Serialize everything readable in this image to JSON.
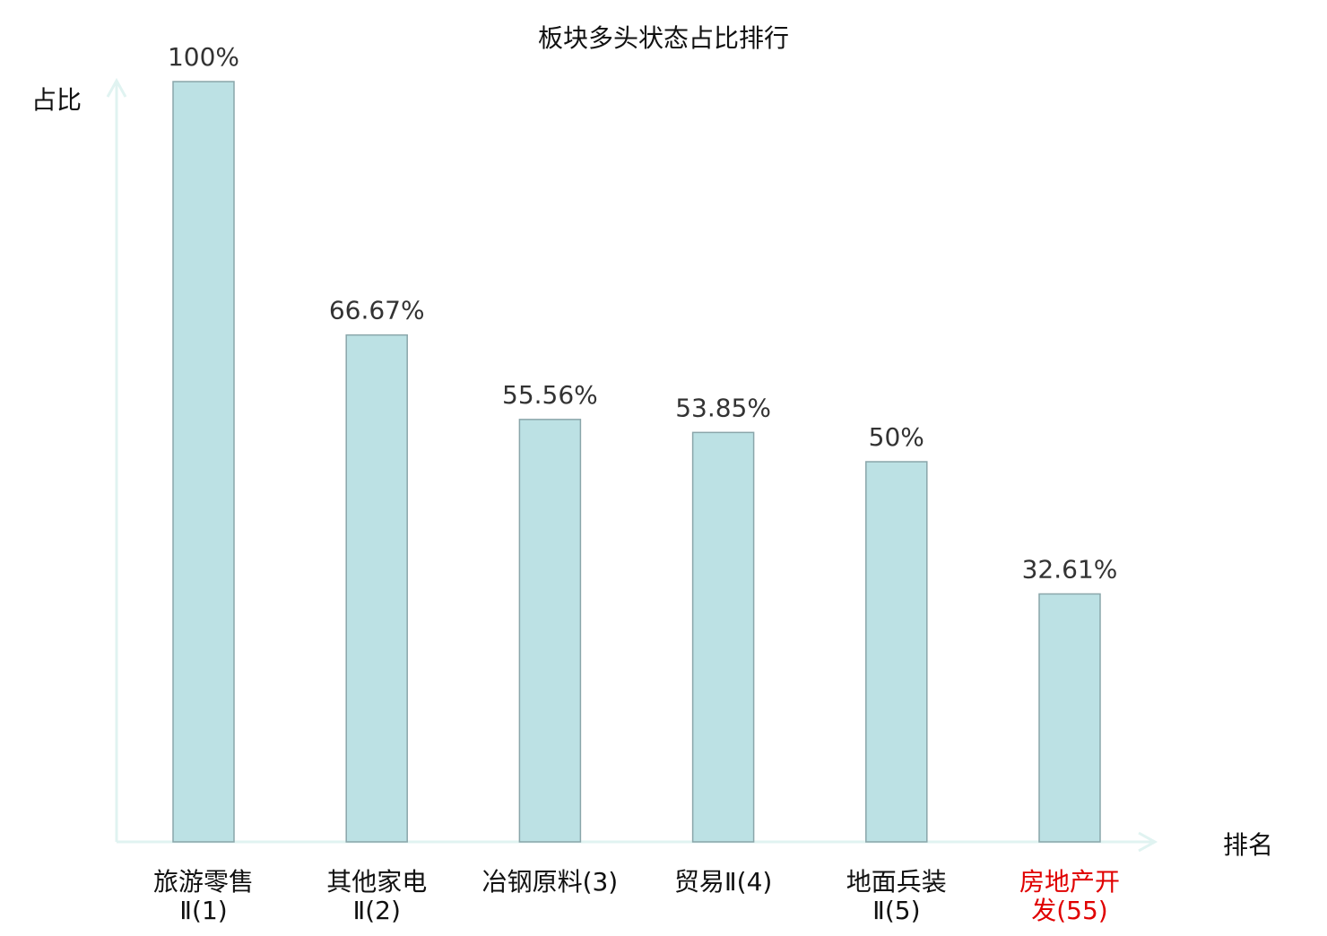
{
  "chart_data": {
    "type": "bar",
    "title": "板块多头状态占比排行",
    "ylabel": "占比",
    "xlabel": "排名",
    "ylim": [
      0,
      100
    ],
    "grid": false,
    "categories": [
      {
        "lines": [
          "旅游零售",
          "Ⅱ(1)"
        ],
        "highlight": false
      },
      {
        "lines": [
          "其他家电",
          "Ⅱ(2)"
        ],
        "highlight": false
      },
      {
        "lines": [
          "冶钢原料(3)"
        ],
        "highlight": false
      },
      {
        "lines": [
          "贸易Ⅱ(4)"
        ],
        "highlight": false
      },
      {
        "lines": [
          "地面兵装",
          "Ⅱ(5)"
        ],
        "highlight": false
      },
      {
        "lines": [
          "房地产开",
          "发(55)"
        ],
        "highlight": true
      }
    ],
    "values": [
      100,
      66.67,
      55.56,
      53.85,
      50,
      32.61
    ],
    "value_labels": [
      "100%",
      "66.67%",
      "55.56%",
      "53.85%",
      "50%",
      "32.61%"
    ],
    "colors": {
      "bar_fill": "#bce1e4",
      "bar_stroke": "#8aa6aa",
      "axis": "#e0f3f1",
      "text": "#333333",
      "highlight": "#e00000"
    }
  }
}
